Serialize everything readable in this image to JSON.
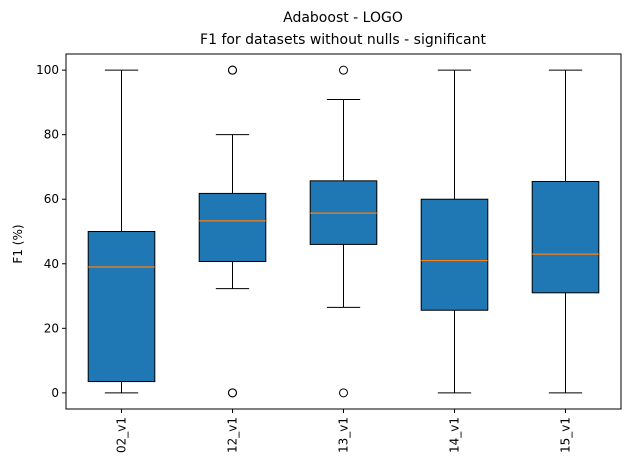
{
  "chart_data": {
    "type": "box",
    "title": "Adaboost - LOGO",
    "subtitle": "F1 for datasets without nulls - significant",
    "xlabel": "",
    "ylabel": "F1 (%)",
    "ylim": [
      -5,
      105
    ],
    "yticks": [
      0,
      20,
      40,
      60,
      80,
      100
    ],
    "grid": false,
    "box_color": "#1f77b4",
    "median_color": "#ff7f0e",
    "categories": [
      "02_v1",
      "12_v1",
      "13_v1",
      "14_v1",
      "15_v1"
    ],
    "boxes": [
      {
        "category": "02_v1",
        "whisker_low": 0,
        "q1": 3.5,
        "median": 39,
        "q3": 50,
        "whisker_high": 100,
        "outliers": []
      },
      {
        "category": "12_v1",
        "whisker_low": 32.3,
        "q1": 40.7,
        "median": 53.3,
        "q3": 61.8,
        "whisker_high": 80,
        "outliers": [
          100,
          100,
          0,
          0
        ]
      },
      {
        "category": "13_v1",
        "whisker_low": 26.5,
        "q1": 46,
        "median": 55.7,
        "q3": 65.7,
        "whisker_high": 90.9,
        "outliers": [
          100,
          0
        ]
      },
      {
        "category": "14_v1",
        "whisker_low": 0,
        "q1": 25.6,
        "median": 41,
        "q3": 60,
        "whisker_high": 100,
        "outliers": []
      },
      {
        "category": "15_v1",
        "whisker_low": 0,
        "q1": 31,
        "median": 43,
        "q3": 65.5,
        "whisker_high": 100,
        "outliers": []
      }
    ]
  }
}
